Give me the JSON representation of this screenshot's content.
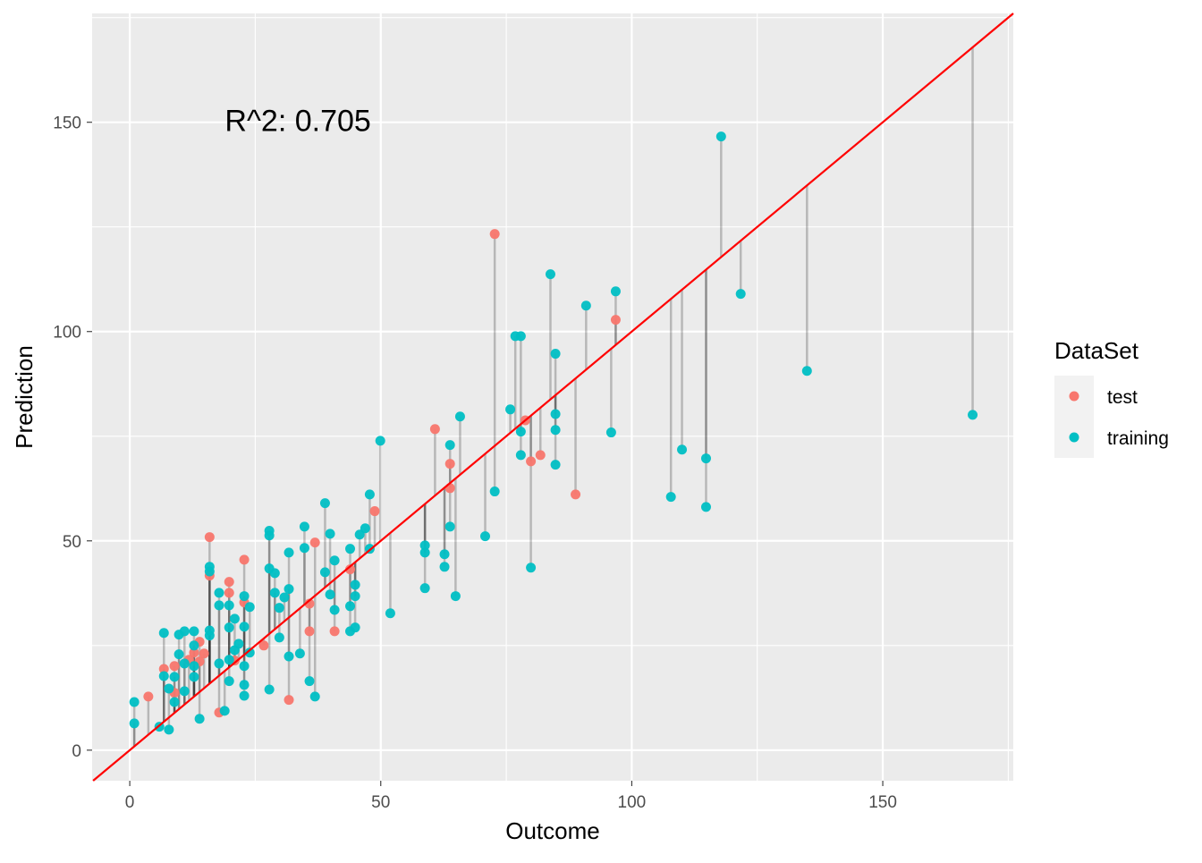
{
  "chart_data": {
    "type": "scatter",
    "title": "",
    "xlabel": "Outcome",
    "ylabel": "Prediction",
    "xlim": [
      -7.5,
      176
    ],
    "ylim": [
      -7.3,
      176
    ],
    "xticks": [
      0,
      50,
      100,
      150
    ],
    "yticks": [
      0,
      50,
      100,
      150
    ],
    "grid": true,
    "annotation": {
      "text": "R^2: 0.705",
      "x": 33.5,
      "y": 150.5
    },
    "reference_line": {
      "type": "identity",
      "color": "#FF0000"
    },
    "residual_segments": true,
    "legend": {
      "title": "DataSet",
      "placement": "right"
    },
    "series": [
      {
        "name": "test",
        "color": "#F8766D",
        "points": [
          [
            3.7,
            12.8
          ],
          [
            6.8,
            19.4
          ],
          [
            8.9,
            20.1
          ],
          [
            8.9,
            13.7
          ],
          [
            11.8,
            21.6
          ],
          [
            12.8,
            23.3
          ],
          [
            13.9,
            25.9
          ],
          [
            13.9,
            21.2
          ],
          [
            14.8,
            23.1
          ],
          [
            15.9,
            50.9
          ],
          [
            15.9,
            41.7
          ],
          [
            17.8,
            9.0
          ],
          [
            19.8,
            40.2
          ],
          [
            19.8,
            37.6
          ],
          [
            20.9,
            21.4
          ],
          [
            22.8,
            45.5
          ],
          [
            22.8,
            35.3
          ],
          [
            26.7,
            25.0
          ],
          [
            31.7,
            12.0
          ],
          [
            35.8,
            35.0
          ],
          [
            35.8,
            28.4
          ],
          [
            36.9,
            49.6
          ],
          [
            40.8,
            28.4
          ],
          [
            43.9,
            43.2
          ],
          [
            48.8,
            57.1
          ],
          [
            60.8,
            76.7
          ],
          [
            63.8,
            68.4
          ],
          [
            63.8,
            62.6
          ],
          [
            72.7,
            123.3
          ],
          [
            78.8,
            78.8
          ],
          [
            79.9,
            69.0
          ],
          [
            81.8,
            70.5
          ],
          [
            88.8,
            61.1
          ],
          [
            96.8,
            102.8
          ]
        ]
      },
      {
        "name": "training",
        "color": "#00BFC4",
        "points": [
          [
            0.9,
            11.5
          ],
          [
            0.9,
            6.4
          ],
          [
            5.9,
            5.6
          ],
          [
            7.8,
            4.9
          ],
          [
            6.8,
            28.0
          ],
          [
            6.8,
            17.7
          ],
          [
            7.8,
            14.7
          ],
          [
            8.9,
            17.5
          ],
          [
            8.9,
            11.5
          ],
          [
            9.8,
            22.9
          ],
          [
            9.8,
            27.6
          ],
          [
            10.9,
            28.4
          ],
          [
            10.9,
            20.7
          ],
          [
            10.9,
            14.1
          ],
          [
            12.8,
            28.4
          ],
          [
            12.8,
            25.0
          ],
          [
            12.8,
            20.1
          ],
          [
            12.8,
            17.5
          ],
          [
            13.9,
            7.5
          ],
          [
            15.9,
            43.8
          ],
          [
            15.9,
            42.7
          ],
          [
            15.9,
            28.6
          ],
          [
            15.9,
            27.4
          ],
          [
            17.8,
            37.6
          ],
          [
            17.8,
            34.6
          ],
          [
            17.8,
            20.7
          ],
          [
            18.9,
            9.4
          ],
          [
            19.8,
            34.6
          ],
          [
            19.8,
            29.3
          ],
          [
            19.8,
            21.6
          ],
          [
            19.8,
            16.5
          ],
          [
            20.9,
            31.4
          ],
          [
            20.9,
            23.9
          ],
          [
            21.7,
            25.4
          ],
          [
            22.8,
            36.8
          ],
          [
            22.8,
            29.5
          ],
          [
            22.8,
            20.1
          ],
          [
            22.8,
            15.6
          ],
          [
            22.8,
            13.0
          ],
          [
            23.9,
            34.2
          ],
          [
            23.9,
            23.3
          ],
          [
            27.8,
            52.4
          ],
          [
            27.8,
            51.3
          ],
          [
            27.8,
            43.4
          ],
          [
            27.8,
            14.5
          ],
          [
            28.9,
            42.3
          ],
          [
            28.9,
            37.6
          ],
          [
            29.8,
            34.0
          ],
          [
            29.8,
            26.9
          ],
          [
            30.8,
            36.5
          ],
          [
            31.7,
            47.2
          ],
          [
            31.7,
            38.5
          ],
          [
            31.7,
            22.4
          ],
          [
            33.9,
            23.1
          ],
          [
            34.8,
            53.4
          ],
          [
            34.8,
            48.3
          ],
          [
            35.8,
            16.5
          ],
          [
            36.9,
            12.8
          ],
          [
            38.9,
            59.0
          ],
          [
            38.9,
            42.5
          ],
          [
            39.9,
            51.7
          ],
          [
            39.9,
            37.2
          ],
          [
            40.8,
            45.3
          ],
          [
            40.8,
            33.5
          ],
          [
            43.9,
            48.1
          ],
          [
            43.9,
            34.4
          ],
          [
            43.9,
            28.4
          ],
          [
            44.9,
            39.5
          ],
          [
            44.9,
            36.8
          ],
          [
            44.9,
            29.3
          ],
          [
            45.8,
            51.5
          ],
          [
            46.9,
            53.0
          ],
          [
            47.8,
            61.1
          ],
          [
            47.8,
            48.1
          ],
          [
            49.9,
            73.9
          ],
          [
            51.9,
            32.7
          ],
          [
            58.8,
            48.9
          ],
          [
            58.8,
            47.2
          ],
          [
            58.8,
            38.7
          ],
          [
            62.7,
            46.8
          ],
          [
            62.7,
            43.8
          ],
          [
            63.8,
            72.9
          ],
          [
            63.8,
            53.4
          ],
          [
            64.9,
            36.8
          ],
          [
            65.8,
            79.7
          ],
          [
            70.8,
            51.1
          ],
          [
            72.7,
            61.8
          ],
          [
            75.8,
            81.4
          ],
          [
            76.8,
            98.9
          ],
          [
            77.9,
            98.9
          ],
          [
            77.9,
            76.1
          ],
          [
            77.9,
            70.5
          ],
          [
            79.9,
            43.6
          ],
          [
            83.8,
            113.7
          ],
          [
            84.8,
            94.7
          ],
          [
            84.8,
            80.3
          ],
          [
            84.8,
            76.5
          ],
          [
            84.8,
            68.2
          ],
          [
            90.9,
            106.2
          ],
          [
            95.9,
            75.9
          ],
          [
            96.8,
            109.6
          ],
          [
            107.8,
            60.5
          ],
          [
            110.0,
            71.8
          ],
          [
            114.8,
            69.7
          ],
          [
            114.8,
            58.1
          ],
          [
            117.8,
            146.6
          ],
          [
            121.7,
            109.0
          ],
          [
            134.9,
            90.6
          ],
          [
            167.9,
            80.1
          ]
        ]
      }
    ]
  }
}
